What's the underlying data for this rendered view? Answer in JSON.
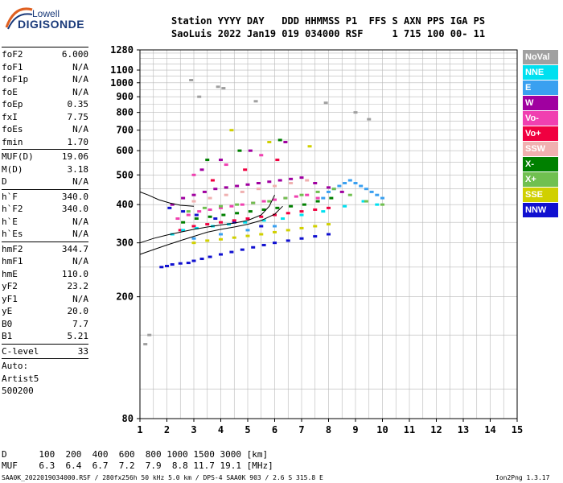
{
  "logo": {
    "line1": "Lowell",
    "line2": "DIGISONDE"
  },
  "header": {
    "labels": "Station YYYY DAY   DDD HHMMSS P1  FFS S AXN PPS IGA PS",
    "values": "SaoLuis 2022 Jan19 019 034000 RSF     1 715 100 00- 11"
  },
  "params_group1": [
    {
      "name": "foF2",
      "value": "6.000"
    },
    {
      "name": "foF1",
      "value": "N/A"
    },
    {
      "name": "foF1p",
      "value": "N/A"
    },
    {
      "name": "foE",
      "value": "N/A"
    },
    {
      "name": "foEp",
      "value": "0.35"
    },
    {
      "name": "fxI",
      "value": "7.75"
    },
    {
      "name": "foEs",
      "value": "N/A"
    },
    {
      "name": "fmin",
      "value": "1.70"
    }
  ],
  "params_group2": [
    {
      "name": "MUF(D)",
      "value": "19.06"
    },
    {
      "name": "M(D)",
      "value": "3.18"
    },
    {
      "name": "D",
      "value": "N/A"
    }
  ],
  "params_group3": [
    {
      "name": "h`F",
      "value": "340.0"
    },
    {
      "name": "h`F2",
      "value": "340.0"
    },
    {
      "name": "h`E",
      "value": "N/A"
    },
    {
      "name": "h`Es",
      "value": "N/A"
    }
  ],
  "params_group4": [
    {
      "name": "hmF2",
      "value": "344.7"
    },
    {
      "name": "hmF1",
      "value": "N/A"
    },
    {
      "name": "hmE",
      "value": "110.0"
    },
    {
      "name": "yF2",
      "value": "23.2"
    },
    {
      "name": "yF1",
      "value": "N/A"
    },
    {
      "name": "yE",
      "value": "20.0"
    },
    {
      "name": "B0",
      "value": "7.7"
    },
    {
      "name": "B1",
      "value": "5.21"
    }
  ],
  "params_group5": [
    {
      "name": "C-level",
      "value": "33"
    }
  ],
  "autoscale": {
    "line1": "Auto:",
    "line2": "Artist5",
    "line3": "500200"
  },
  "legend": [
    {
      "label": "NoVal",
      "color": "#a0a0a0"
    },
    {
      "label": "NNE",
      "color": "#00e0f0"
    },
    {
      "label": "E",
      "color": "#3aa0f0"
    },
    {
      "label": "W",
      "color": "#a000a0"
    },
    {
      "label": "Vo-",
      "color": "#f040b0"
    },
    {
      "label": "Vo+",
      "color": "#f00040"
    },
    {
      "label": "SSW",
      "color": "#f0b0b0"
    },
    {
      "label": "X-",
      "color": "#008000"
    },
    {
      "label": "X+",
      "color": "#70c050"
    },
    {
      "label": "SSE",
      "color": "#d0d000"
    },
    {
      "label": "NNW",
      "color": "#1010d0"
    }
  ],
  "footer": {
    "d_line": "D      100  200  400  600  800 1000 1500 3000 [km]",
    "muf_line": "MUF    6.3  6.4  6.7  7.2  7.9  8.8 11.7 19.1 [MHz]",
    "source": "SAA0K_2022019034000.RSF / 280fx256h 50 kHz 5.0 km / DPS-4 SAA0K 903 / 2.6 S 315.8 E",
    "version": "Ion2Png 1.3.17"
  },
  "chart_data": {
    "type": "scatter",
    "title": "",
    "xlabel": "",
    "ylabel": "",
    "xlim": [
      1,
      15
    ],
    "ylim": [
      80,
      1280
    ],
    "y_scale": "log",
    "grid": true,
    "x_ticks": [
      1,
      2,
      3,
      4,
      5,
      6,
      7,
      8,
      9,
      10,
      11,
      12,
      13,
      14,
      15
    ],
    "y_ticks": [
      80,
      200,
      300,
      400,
      500,
      600,
      700,
      800,
      900,
      1000,
      1100,
      1280
    ],
    "series": [
      {
        "name": "NNW",
        "color": "#1010d0",
        "x": [
          1.8,
          2.0,
          2.2,
          2.5,
          2.8,
          3.0,
          3.3,
          3.6,
          4.0,
          4.4,
          4.8,
          5.2,
          5.6,
          6.0,
          6.5,
          7.0,
          7.5,
          8.0,
          2.1,
          2.6,
          3.1,
          3.8,
          4.5,
          5.5
        ],
        "y": [
          250,
          252,
          255,
          257,
          258,
          262,
          266,
          270,
          275,
          280,
          285,
          290,
          295,
          300,
          305,
          310,
          315,
          320,
          390,
          380,
          370,
          360,
          350,
          340
        ]
      },
      {
        "name": "W",
        "color": "#a000a0",
        "x": [
          2.2,
          2.6,
          3.0,
          3.4,
          3.8,
          4.2,
          4.6,
          5.0,
          5.4,
          5.8,
          6.2,
          6.6,
          7.0,
          7.5,
          8.0,
          8.5,
          3.3,
          4.0,
          5.1,
          6.4
        ],
        "y": [
          400,
          420,
          430,
          440,
          450,
          455,
          460,
          465,
          470,
          475,
          480,
          485,
          490,
          470,
          455,
          440,
          520,
          560,
          600,
          640
        ]
      },
      {
        "name": "Vo-",
        "color": "#f040b0",
        "x": [
          2.4,
          2.8,
          3.2,
          3.6,
          4.0,
          4.4,
          4.8,
          5.2,
          5.6,
          6.0,
          6.4,
          6.8,
          7.2,
          7.6,
          3.0,
          4.2,
          5.5
        ],
        "y": [
          360,
          370,
          380,
          385,
          390,
          395,
          400,
          405,
          410,
          415,
          420,
          425,
          430,
          420,
          500,
          540,
          580
        ]
      },
      {
        "name": "Vo+",
        "color": "#f00040",
        "x": [
          2.5,
          3.0,
          3.5,
          4.0,
          4.5,
          5.0,
          5.5,
          6.0,
          6.5,
          7.0,
          7.5,
          8.0,
          3.7,
          4.9,
          6.1
        ],
        "y": [
          330,
          340,
          345,
          350,
          355,
          360,
          365,
          370,
          375,
          380,
          385,
          390,
          480,
          520,
          560
        ]
      },
      {
        "name": "E",
        "color": "#3aa0f0",
        "x": [
          7.8,
          8.0,
          8.2,
          8.4,
          8.6,
          8.8,
          9.0,
          9.2,
          9.4,
          9.6,
          9.8,
          10.0,
          3.0,
          4.0,
          5.0,
          6.0
        ],
        "y": [
          420,
          440,
          450,
          460,
          470,
          480,
          470,
          460,
          450,
          440,
          430,
          420,
          310,
          320,
          330,
          340
        ]
      },
      {
        "name": "NNE",
        "color": "#00e0f0",
        "x": [
          2.2,
          2.6,
          3.1,
          3.7,
          4.3,
          4.9,
          5.6,
          6.3,
          7.0,
          7.8,
          8.6,
          9.3,
          9.8
        ],
        "y": [
          320,
          330,
          335,
          340,
          345,
          350,
          355,
          360,
          370,
          380,
          395,
          410,
          400
        ]
      },
      {
        "name": "SSE",
        "color": "#d0d000",
        "x": [
          3.0,
          3.5,
          4.0,
          4.5,
          5.0,
          5.5,
          6.0,
          6.5,
          7.0,
          7.5,
          8.0,
          4.4,
          5.8,
          7.3
        ],
        "y": [
          300,
          305,
          308,
          312,
          316,
          320,
          325,
          330,
          335,
          340,
          345,
          700,
          640,
          620
        ]
      },
      {
        "name": "X-",
        "color": "#008000",
        "x": [
          2.6,
          3.1,
          3.6,
          4.1,
          4.6,
          5.1,
          5.6,
          6.1,
          6.6,
          7.1,
          7.6,
          8.1,
          3.5,
          4.7,
          6.2
        ],
        "y": [
          350,
          360,
          365,
          370,
          375,
          380,
          385,
          390,
          395,
          400,
          410,
          420,
          560,
          600,
          650
        ]
      },
      {
        "name": "X+",
        "color": "#70c050",
        "x": [
          2.8,
          3.4,
          4.0,
          4.6,
          5.2,
          5.8,
          6.4,
          7.0,
          7.6,
          8.2,
          8.8,
          9.4,
          10.0
        ],
        "y": [
          380,
          390,
          395,
          400,
          405,
          410,
          420,
          430,
          440,
          450,
          430,
          410,
          400
        ]
      },
      {
        "name": "SSW",
        "color": "#f0b0b0",
        "x": [
          3.0,
          3.6,
          4.2,
          4.8,
          5.4,
          6.0,
          6.6,
          7.2
        ],
        "y": [
          410,
          420,
          430,
          440,
          450,
          460,
          470,
          480
        ]
      },
      {
        "name": "NoVal",
        "color": "#a0a0a0",
        "x": [
          1.2,
          1.35,
          2.9,
          3.9,
          4.1,
          3.2,
          5.3,
          7.9,
          9.0,
          9.5
        ],
        "y": [
          140,
          150,
          1020,
          970,
          960,
          900,
          870,
          860,
          800,
          760
        ]
      }
    ],
    "traces": [
      {
        "name": "O-trace",
        "x": [
          1.0,
          1.5,
          2.0,
          2.5,
          3.0,
          3.5,
          4.0,
          4.5,
          5.0,
          5.5,
          5.8,
          6.0
        ],
        "y": [
          300,
          310,
          318,
          325,
          332,
          338,
          343,
          348,
          355,
          370,
          395,
          430
        ]
      },
      {
        "name": "X-trace",
        "x": [
          1.0,
          1.5,
          2.0,
          2.5,
          3.0,
          3.5,
          4.0,
          4.5,
          5.0,
          5.5,
          6.0,
          6.3
        ],
        "y": [
          275,
          285,
          295,
          305,
          315,
          325,
          332,
          338,
          345,
          355,
          372,
          395
        ]
      },
      {
        "name": "upper",
        "x": [
          1.0,
          1.3,
          1.7,
          2.1,
          2.5,
          3.0
        ],
        "y": [
          440,
          430,
          415,
          405,
          398,
          395
        ]
      }
    ]
  }
}
